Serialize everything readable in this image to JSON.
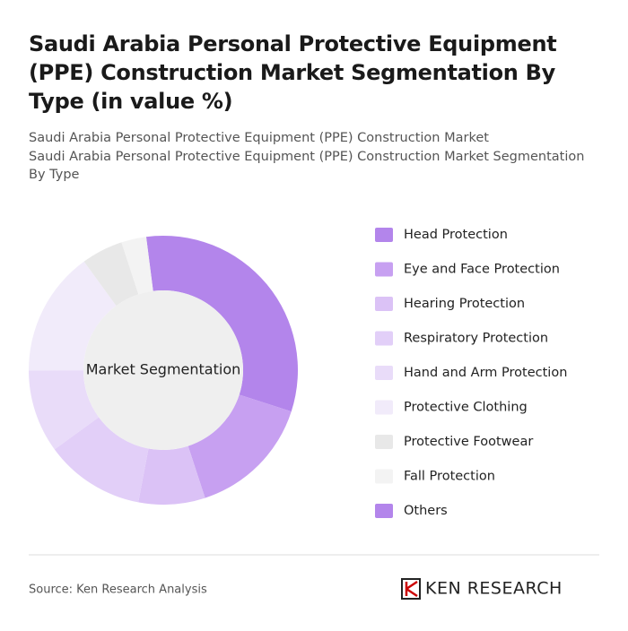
{
  "chart_data": {
    "type": "donut",
    "title": "Saudi Arabia Personal Protective Equipment (PPE) Construction Market Segmentation By Type (in value %)",
    "subtitle": "Saudi Arabia Personal Protective Equipment (PPE) Construction Market",
    "subtitle2": "Saudi Arabia Personal Protective Equipment (PPE) Construction Market Segmentation By Type",
    "center_label": "Market Segmentation",
    "categories": [
      "Head Protection",
      "Eye and Face Protection",
      "Hearing Protection",
      "Respiratory Protection",
      "Hand and Arm Protection",
      "Protective Clothing",
      "Protective Footwear",
      "Fall Protection",
      "Others"
    ],
    "values": [
      32,
      15,
      8,
      12,
      10,
      15,
      5,
      3,
      0
    ],
    "colors": [
      "#b385eb",
      "#c7a0f1",
      "#dbc2f6",
      "#e2cff8",
      "#e9dcf9",
      "#f1ebfa",
      "#e8e8e8",
      "#f3f3f3",
      "#b385eb"
    ],
    "source": "Source: Ken Research Analysis",
    "brand": "KEN RESEARCH"
  }
}
